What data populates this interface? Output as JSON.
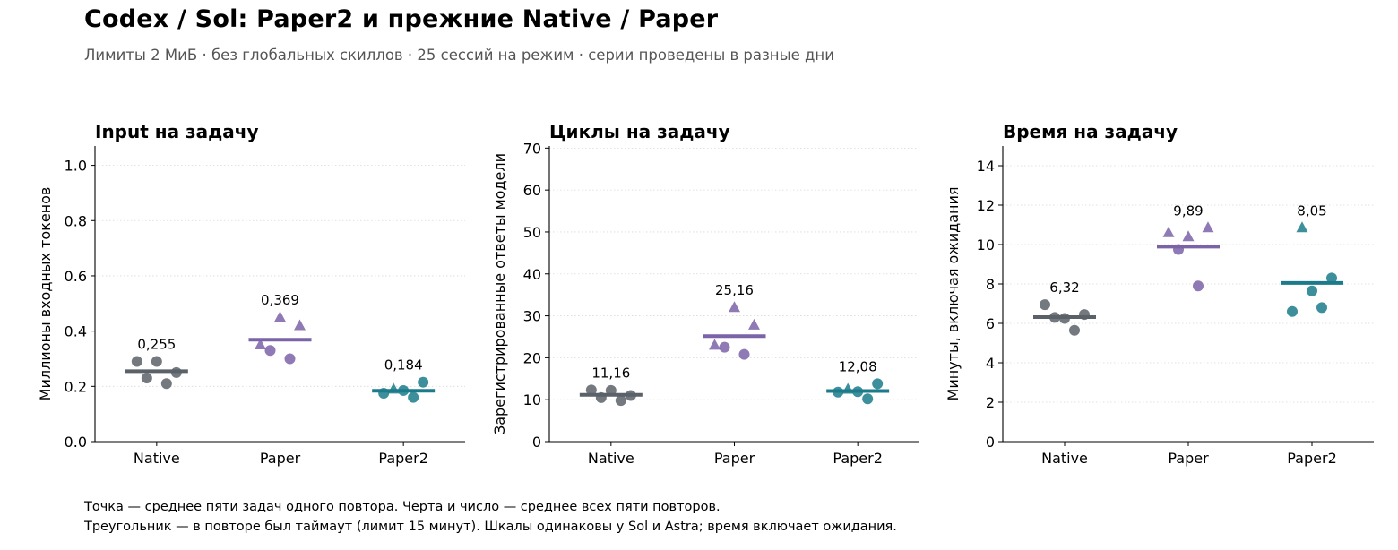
{
  "title": "Codex / Sol: Paper2 и прежние Native / Paper",
  "subtitle": "Лимиты 2 МиБ · без глобальных скиллов · 25 сессий на режим · серии проведены в разные дни",
  "footnotes": [
    "Точка — среднее пяти задач одного повтора. Черта и число — среднее всех пяти повторов.",
    "Треугольник — в повторе был таймаут (лимит 15 минут). Шкалы одинаковы у Sol и Astra; время включает ожидания."
  ],
  "colors": {
    "Native": "#5a6169",
    "Paper": "#7b63a8",
    "Paper2": "#1b7b8a"
  },
  "chart_data": [
    {
      "type": "scatter",
      "title": "Input на задачу",
      "ylabel": "Миллионы входных токенов",
      "categories": [
        "Native",
        "Paper",
        "Paper2"
      ],
      "ylim": [
        0,
        1.07
      ],
      "yticks": [
        0.0,
        0.2,
        0.4,
        0.6,
        0.8,
        1.0
      ],
      "ytick_labels": [
        "0.0",
        "0.2",
        "0.4",
        "0.6",
        "0.8",
        "1.0"
      ],
      "grid": "horizontal",
      "series": [
        {
          "category": "Native",
          "mean": 0.255,
          "mean_label": "0,255",
          "points": [
            {
              "y": 0.29,
              "marker": "circle"
            },
            {
              "y": 0.23,
              "marker": "circle"
            },
            {
              "y": 0.29,
              "marker": "circle"
            },
            {
              "y": 0.21,
              "marker": "circle"
            },
            {
              "y": 0.25,
              "marker": "circle"
            }
          ]
        },
        {
          "category": "Paper",
          "mean": 0.369,
          "mean_label": "0,369",
          "points": [
            {
              "y": 0.35,
              "marker": "triangle"
            },
            {
              "y": 0.33,
              "marker": "circle"
            },
            {
              "y": 0.45,
              "marker": "triangle"
            },
            {
              "y": 0.3,
              "marker": "circle"
            },
            {
              "y": 0.42,
              "marker": "triangle"
            }
          ]
        },
        {
          "category": "Paper2",
          "mean": 0.184,
          "mean_label": "0,184",
          "points": [
            {
              "y": 0.175,
              "marker": "circle"
            },
            {
              "y": 0.19,
              "marker": "triangle"
            },
            {
              "y": 0.185,
              "marker": "circle"
            },
            {
              "y": 0.16,
              "marker": "circle"
            },
            {
              "y": 0.215,
              "marker": "circle"
            }
          ]
        }
      ]
    },
    {
      "type": "scatter",
      "title": "Циклы на задачу",
      "ylabel": "Зарегистрированные ответы модели",
      "categories": [
        "Native",
        "Paper",
        "Paper2"
      ],
      "ylim": [
        0,
        70.5
      ],
      "yticks": [
        0,
        10,
        20,
        30,
        40,
        50,
        60,
        70
      ],
      "ytick_labels": [
        "0",
        "10",
        "20",
        "30",
        "40",
        "50",
        "60",
        "70"
      ],
      "grid": "horizontal",
      "series": [
        {
          "category": "Native",
          "mean": 11.16,
          "mean_label": "11,16",
          "points": [
            {
              "y": 12.3,
              "marker": "circle"
            },
            {
              "y": 10.5,
              "marker": "circle"
            },
            {
              "y": 12.2,
              "marker": "circle"
            },
            {
              "y": 9.8,
              "marker": "circle"
            },
            {
              "y": 11.0,
              "marker": "circle"
            }
          ]
        },
        {
          "category": "Paper",
          "mean": 25.16,
          "mean_label": "25,16",
          "points": [
            {
              "y": 23.0,
              "marker": "triangle"
            },
            {
              "y": 22.5,
              "marker": "circle"
            },
            {
              "y": 32.0,
              "marker": "triangle"
            },
            {
              "y": 20.8,
              "marker": "circle"
            },
            {
              "y": 27.8,
              "marker": "triangle"
            }
          ]
        },
        {
          "category": "Paper2",
          "mean": 12.08,
          "mean_label": "12,08",
          "points": [
            {
              "y": 11.8,
              "marker": "circle"
            },
            {
              "y": 12.5,
              "marker": "triangle"
            },
            {
              "y": 11.9,
              "marker": "circle"
            },
            {
              "y": 10.2,
              "marker": "circle"
            },
            {
              "y": 13.8,
              "marker": "circle"
            }
          ]
        }
      ]
    },
    {
      "type": "scatter",
      "title": "Время на задачу",
      "ylabel": "Минуты, включая ожидания",
      "categories": [
        "Native",
        "Paper",
        "Paper2"
      ],
      "ylim": [
        0,
        15
      ],
      "yticks": [
        0,
        2,
        4,
        6,
        8,
        10,
        12,
        14
      ],
      "ytick_labels": [
        "0",
        "2",
        "4",
        "6",
        "8",
        "10",
        "12",
        "14"
      ],
      "grid": "horizontal",
      "series": [
        {
          "category": "Native",
          "mean": 6.32,
          "mean_label": "6,32",
          "points": [
            {
              "y": 6.95,
              "marker": "circle"
            },
            {
              "y": 6.3,
              "marker": "circle"
            },
            {
              "y": 6.25,
              "marker": "circle"
            },
            {
              "y": 5.65,
              "marker": "circle"
            },
            {
              "y": 6.45,
              "marker": "circle"
            }
          ]
        },
        {
          "category": "Paper",
          "mean": 9.89,
          "mean_label": "9,89",
          "points": [
            {
              "y": 10.6,
              "marker": "triangle"
            },
            {
              "y": 9.75,
              "marker": "circle"
            },
            {
              "y": 10.4,
              "marker": "triangle"
            },
            {
              "y": 7.9,
              "marker": "circle"
            },
            {
              "y": 10.85,
              "marker": "triangle"
            }
          ]
        },
        {
          "category": "Paper2",
          "mean": 8.05,
          "mean_label": "8,05",
          "points": [
            {
              "y": 6.6,
              "marker": "circle"
            },
            {
              "y": 10.85,
              "marker": "triangle"
            },
            {
              "y": 7.65,
              "marker": "circle"
            },
            {
              "y": 6.8,
              "marker": "circle"
            },
            {
              "y": 8.3,
              "marker": "circle"
            }
          ]
        }
      ]
    }
  ]
}
